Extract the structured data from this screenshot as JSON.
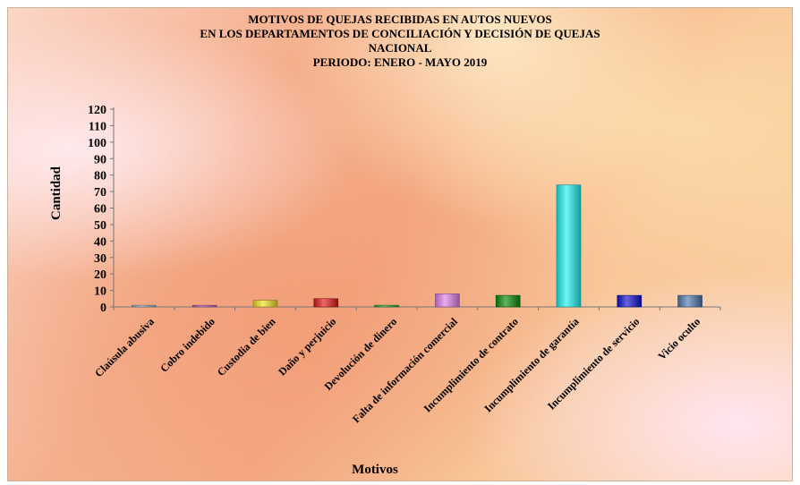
{
  "chart_data": {
    "type": "bar",
    "title_lines": [
      "MOTIVOS DE QUEJAS RECIBIDAS EN AUTOS NUEVOS",
      "EN LOS DEPARTAMENTOS DE CONCILIACIÓN Y DECISIÓN DE QUEJAS",
      "NACIONAL",
      "PERIODO: ENERO - MAYO  2019"
    ],
    "xlabel": "Motivos",
    "ylabel": "Cantidad",
    "ylim": [
      0,
      120
    ],
    "ytick_step": 10,
    "ytick_labels": [
      "0",
      "10",
      "20",
      "30",
      "40",
      "50",
      "60",
      "70",
      "80",
      "90",
      "100",
      "110",
      "120"
    ],
    "categories": [
      "Claúsula abusiva",
      "Cobro indebido",
      "Custodia de bien",
      "Daño y perjuicio",
      "Devolución de dinero",
      "Falta de información comercial",
      "Incumplimiento de contrato",
      "Incumplimiento de garantía",
      "Incumplimiento de servicio",
      "Vicio oculto"
    ],
    "values": [
      1,
      1,
      4,
      5,
      1,
      8,
      7,
      74,
      7,
      7
    ],
    "colors": [
      "#9fb8c8",
      "#c060c0",
      "#f0e020",
      "#e01818",
      "#30b030",
      "#e080e8",
      "#0a8a0a",
      "#20f0f0",
      "#1010d0",
      "#5078b0"
    ],
    "grid": false,
    "legend": "none"
  }
}
